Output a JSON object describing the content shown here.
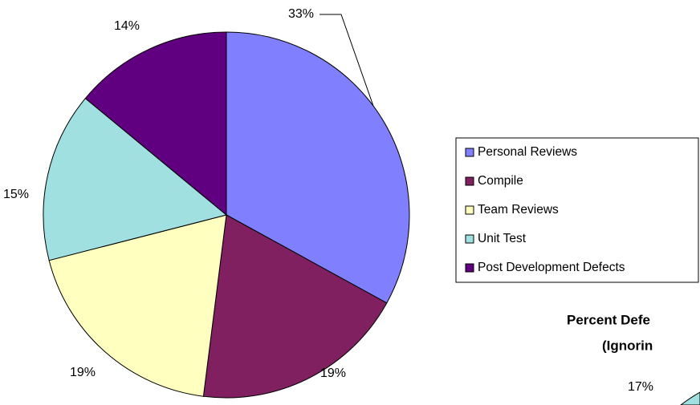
{
  "chart_data": [
    {
      "type": "pie",
      "categories": [
        "Personal Reviews",
        "Compile",
        "Team Reviews",
        "Unit Test",
        "Post Development Defects"
      ],
      "values": [
        33,
        19,
        19,
        15,
        14
      ],
      "value_labels": [
        "33%",
        "19%",
        "19%",
        "15%",
        "14%"
      ],
      "colors": [
        "#8080ff",
        "#802060",
        "#ffffc0",
        "#a0e0e0",
        "#600080"
      ],
      "legend": "right"
    },
    {
      "type": "pie",
      "title": "Percent Defe",
      "subtitle": "(Ignorin",
      "values": [
        17
      ],
      "value_labels": [
        "17%"
      ],
      "colors": [
        "#a0e0e0"
      ]
    }
  ]
}
